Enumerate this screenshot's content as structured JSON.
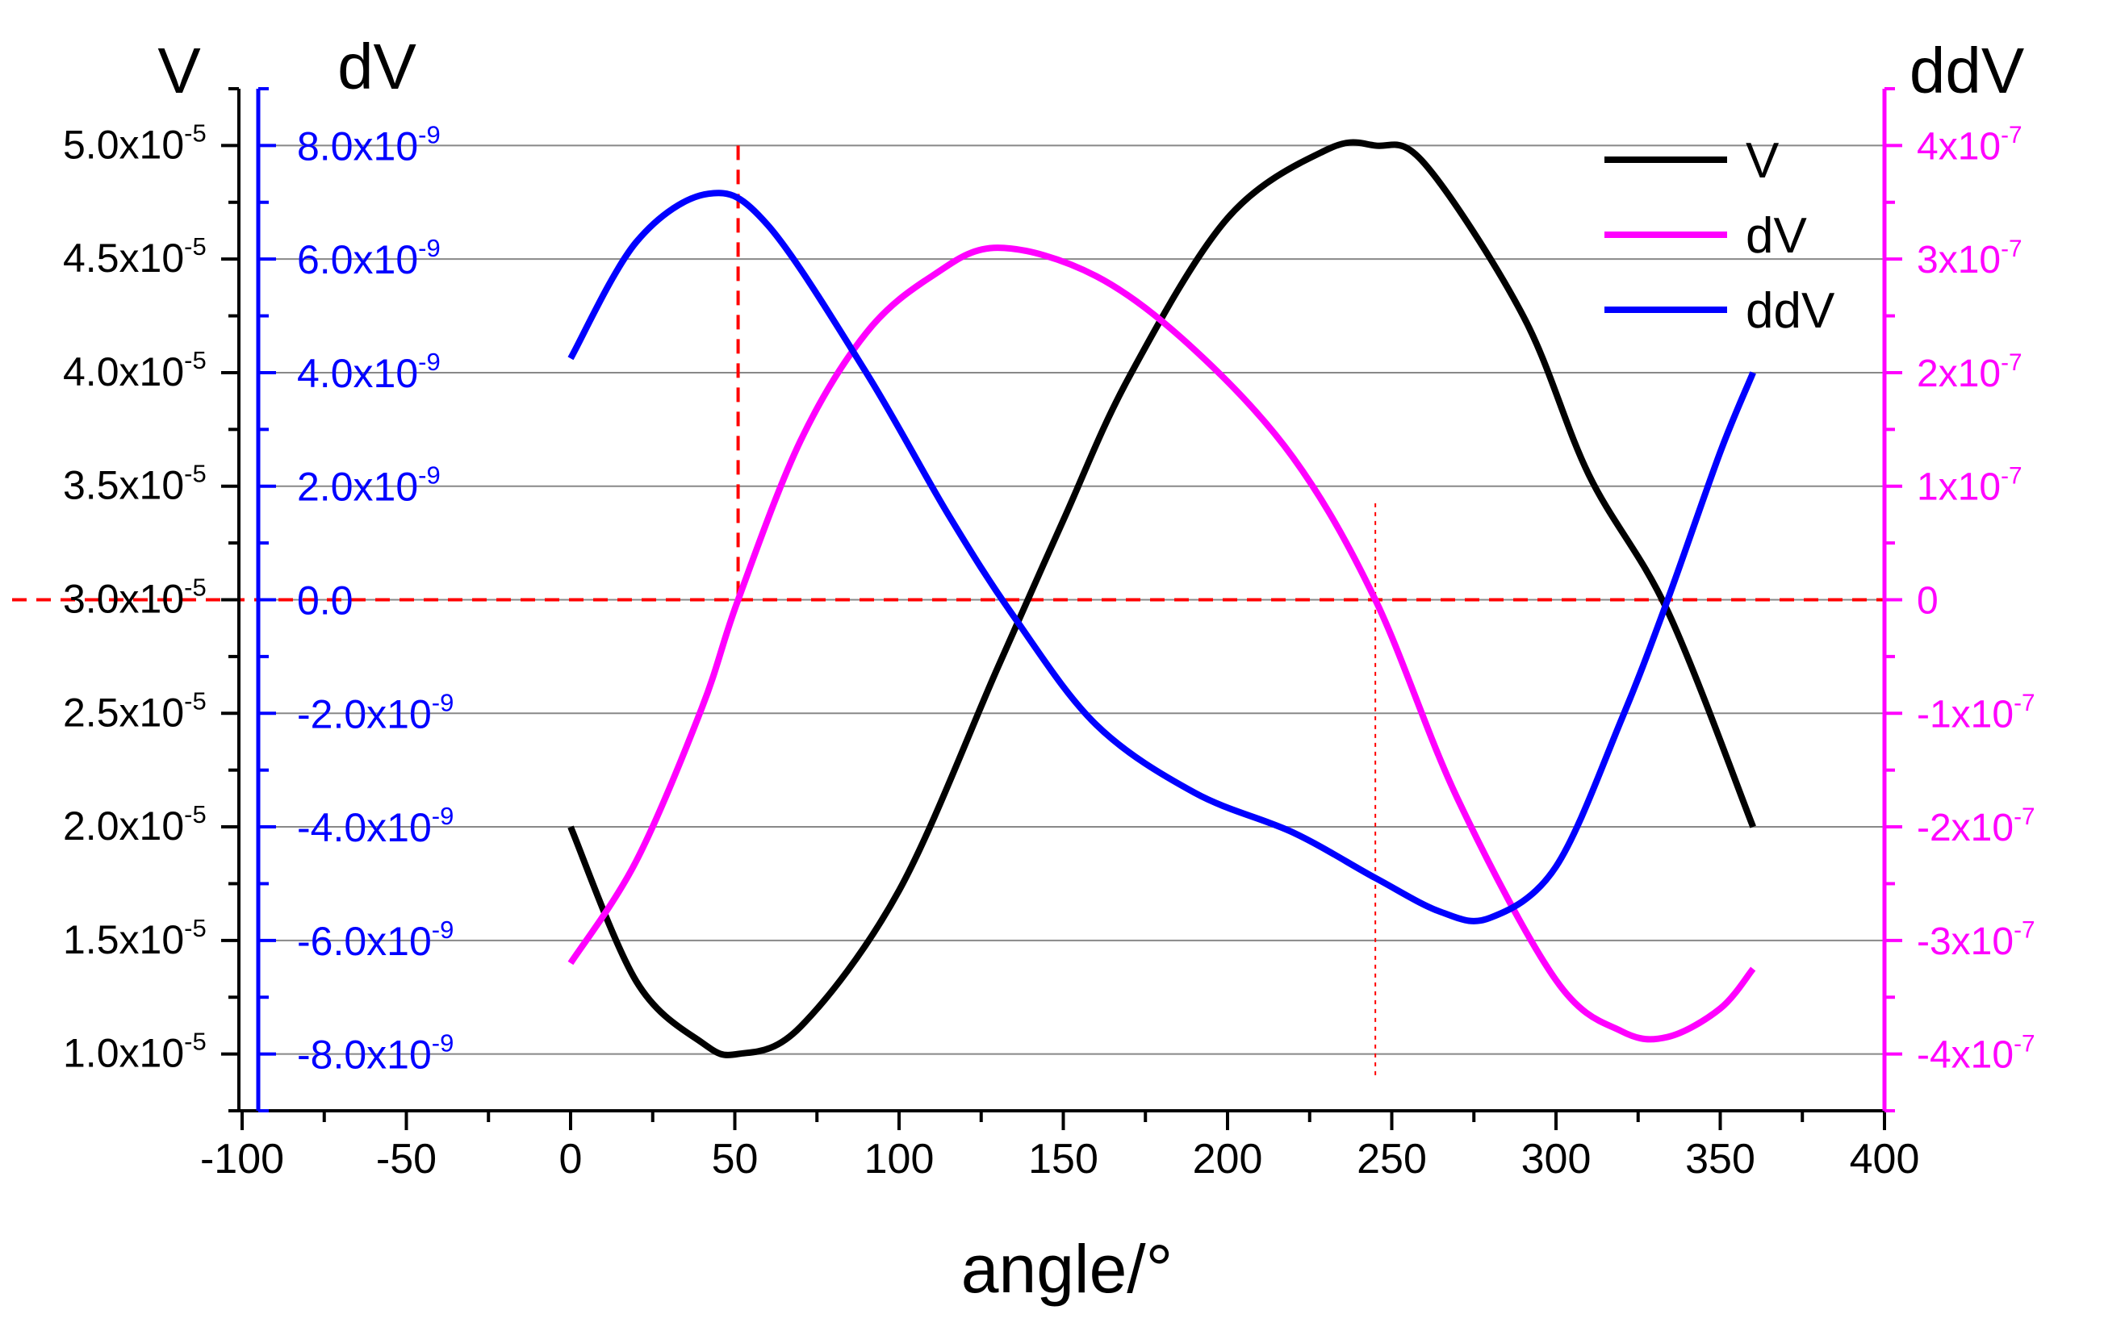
{
  "chart_data": {
    "type": "line",
    "xlabel": "angle/°",
    "xlim": [
      -100,
      400
    ],
    "xticks": [
      -100,
      -50,
      0,
      50,
      100,
      150,
      200,
      250,
      300,
      350,
      400
    ],
    "axes": {
      "left": {
        "title": "V",
        "ylim": [
          7.5e-06,
          5.25e-05
        ],
        "ticks": [
          1e-05,
          1.5e-05,
          2e-05,
          2.5e-05,
          3e-05,
          3.5e-05,
          4e-05,
          4.5e-05,
          5e-05
        ],
        "tick_labels": [
          {
            "mant": "1.0x10",
            "exp": "-5"
          },
          {
            "mant": "1.5x10",
            "exp": "-5"
          },
          {
            "mant": "2.0x10",
            "exp": "-5"
          },
          {
            "mant": "2.5x10",
            "exp": "-5"
          },
          {
            "mant": "3.0x10",
            "exp": "-5"
          },
          {
            "mant": "3.5x10",
            "exp": "-5"
          },
          {
            "mant": "4.0x10",
            "exp": "-5"
          },
          {
            "mant": "4.5x10",
            "exp": "-5"
          },
          {
            "mant": "5.0x10",
            "exp": "-5"
          }
        ],
        "color": "#000000"
      },
      "left_inner": {
        "title": "dV",
        "ylim": [
          -9e-09,
          9e-09
        ],
        "ticks": [
          -8e-09,
          -6e-09,
          -4e-09,
          -2e-09,
          0,
          2e-09,
          4e-09,
          6e-09,
          8e-09
        ],
        "tick_labels": [
          {
            "mant": "-8.0x10",
            "exp": "-9"
          },
          {
            "mant": "-6.0x10",
            "exp": "-9"
          },
          {
            "mant": "-4.0x10",
            "exp": "-9"
          },
          {
            "mant": "-2.0x10",
            "exp": "-9"
          },
          {
            "mant": "0.0",
            "exp": ""
          },
          {
            "mant": "2.0x10",
            "exp": "-9"
          },
          {
            "mant": "4.0x10",
            "exp": "-9"
          },
          {
            "mant": "6.0x10",
            "exp": "-9"
          },
          {
            "mant": "8.0x10",
            "exp": "-9"
          }
        ],
        "color": "#0000ff"
      },
      "right": {
        "title": "ddV",
        "ylim": [
          -4.5e-07,
          4.5e-07
        ],
        "ticks": [
          -4e-07,
          -3e-07,
          -2e-07,
          -1e-07,
          0,
          1e-07,
          2e-07,
          3e-07,
          4e-07
        ],
        "tick_labels": [
          {
            "mant": "-4x10",
            "exp": "-7"
          },
          {
            "mant": "-3x10",
            "exp": "-7"
          },
          {
            "mant": "-2x10",
            "exp": "-7"
          },
          {
            "mant": "-1x10",
            "exp": "-7"
          },
          {
            "mant": "0",
            "exp": ""
          },
          {
            "mant": "1x10",
            "exp": "-7"
          },
          {
            "mant": "2x10",
            "exp": "-7"
          },
          {
            "mant": "3x10",
            "exp": "-7"
          },
          {
            "mant": "4x10",
            "exp": "-7"
          }
        ],
        "color": "#ff00ff"
      }
    },
    "series": [
      {
        "name": "V",
        "color": "#000000",
        "axis": "left",
        "x": [
          0,
          20,
          40,
          51,
          70,
          100,
          130,
          150,
          170,
          200,
          230,
          245,
          260,
          290,
          310,
          334,
          360
        ],
        "values": [
          2e-05,
          1.32e-05,
          1.05e-05,
          1e-05,
          1.12e-05,
          1.72e-05,
          2.7e-05,
          3.35e-05,
          3.98e-05,
          4.68e-05,
          4.98e-05,
          5e-05,
          4.92e-05,
          4.25e-05,
          3.55e-05,
          2.95e-05,
          2e-05
        ]
      },
      {
        "name": "dV",
        "color": "#ff00ff",
        "axis": "right",
        "x": [
          0,
          20,
          40,
          51,
          70,
          90,
          110,
          130,
          160,
          190,
          220,
          245,
          270,
          300,
          320,
          334,
          350,
          360
        ],
        "values": [
          -3.2e-07,
          -2.3e-07,
          -9.5e-08,
          0,
          1.4e-07,
          2.35e-07,
          2.85e-07,
          3.1e-07,
          2.85e-07,
          2.2e-07,
          1.25e-07,
          0,
          -1.75e-07,
          -3.35e-07,
          -3.8e-07,
          -3.85e-07,
          -3.6e-07,
          -3.25e-07
        ]
      },
      {
        "name": "ddV",
        "color": "#0000ff",
        "axis": "left_inner",
        "x": [
          0,
          20,
          42,
          60,
          90,
          115,
          135,
          160,
          190,
          220,
          245,
          265,
          280,
          300,
          320,
          334,
          350,
          360
        ],
        "values": [
          4.25e-09,
          6.3e-09,
          7.15e-09,
          6.6e-09,
          4e-09,
          1.5e-09,
          -3e-10,
          -2.2e-09,
          -3.4e-09,
          -4.1e-09,
          -4.9e-09,
          -5.5e-09,
          -5.6e-09,
          -4.7e-09,
          -2.1e-09,
          0,
          2.6e-09,
          4e-09
        ]
      }
    ],
    "legend": {
      "position": "top-right",
      "entries": [
        {
          "label": "V",
          "color": "#000000"
        },
        {
          "label": "dV",
          "color": "#ff00ff"
        },
        {
          "label": "ddV",
          "color": "#0000ff"
        }
      ]
    },
    "reference_lines": [
      {
        "type": "horizontal",
        "value": 0,
        "axis": "right",
        "color": "#ff0000",
        "style": "dashed"
      },
      {
        "type": "vertical",
        "x": 51,
        "color": "#ff0000",
        "style": "dashed"
      },
      {
        "type": "vertical",
        "x": 245,
        "color": "#ff0000",
        "style": "dotted"
      }
    ],
    "grid": true
  }
}
